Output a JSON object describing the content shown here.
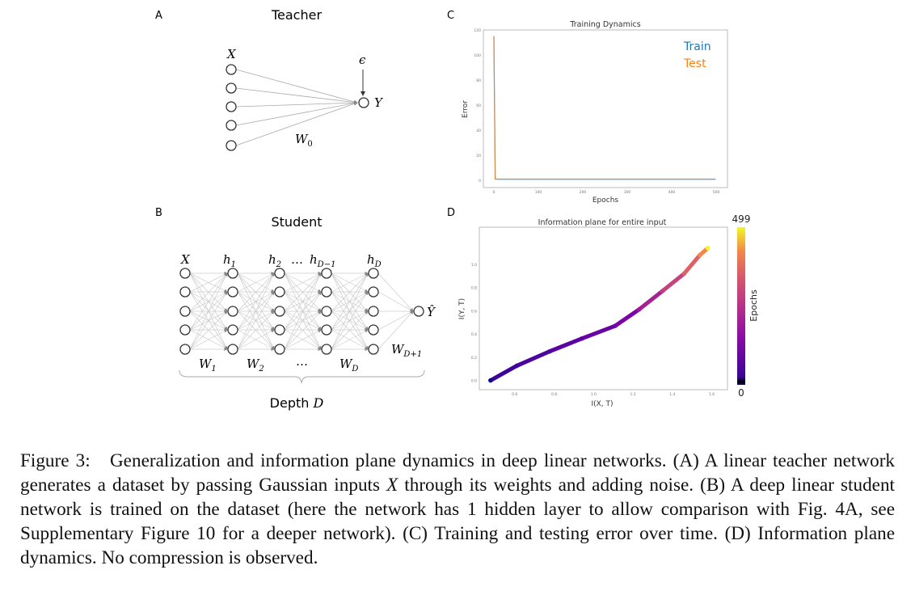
{
  "panels": {
    "a": {
      "letter": "A",
      "title": "Teacher",
      "input_label": "X",
      "noise_label": "ϵ",
      "output_label": "Y",
      "weight_label": "W",
      "weight_sub": "0"
    },
    "b": {
      "letter": "B",
      "title": "Student",
      "layer_labels": [
        "X",
        "h",
        "h",
        "…",
        "h",
        "h"
      ],
      "layer_subs": [
        "",
        "1",
        "2",
        "",
        "D−1",
        "D"
      ],
      "weight_labels": [
        "W",
        "W",
        "…",
        "W",
        "W"
      ],
      "weight_subs": [
        "1",
        "2",
        "",
        "D",
        "D+1"
      ],
      "output_label": "Ŷ",
      "depth_label": "Depth ",
      "depth_var": "D"
    },
    "c": {
      "letter": "C"
    },
    "d": {
      "letter": "D"
    }
  },
  "chart_data": [
    {
      "type": "line",
      "title": "Training Dynamics",
      "xlabel": "Epochs",
      "ylabel": "Error",
      "xlim": [
        0,
        500
      ],
      "ylim": [
        0,
        120
      ],
      "xticks": [
        "0",
        "100",
        "200",
        "300",
        "400",
        "500"
      ],
      "yticks": [
        "0",
        "20",
        "40",
        "60",
        "80",
        "100",
        "120"
      ],
      "legend_position": "top-right",
      "series": [
        {
          "name": "Train",
          "color": "#1f77b4",
          "x": [
            0,
            3,
            10,
            100,
            200,
            300,
            400,
            499
          ],
          "y": [
            115,
            1,
            0.8,
            0.8,
            0.8,
            0.8,
            0.8,
            0.8
          ]
        },
        {
          "name": "Test",
          "color": "#ff7f0e",
          "x": [
            0,
            3,
            10,
            100,
            200,
            300,
            400,
            499
          ],
          "y": [
            115,
            1.2,
            1,
            1,
            1,
            1,
            1,
            1
          ]
        }
      ]
    },
    {
      "type": "scatter",
      "title": "Information plane for entire input",
      "xlabel": "I(X, T)",
      "ylabel": "I(Y, T)",
      "xlim": [
        0.42,
        1.68
      ],
      "ylim": [
        -0.08,
        1.32
      ],
      "xticks": [
        "0.6",
        "0.8",
        "1.0",
        "1.2",
        "1.4",
        "1.6"
      ],
      "yticks": [
        "0.0",
        "0.2",
        "0.4",
        "0.6",
        "0.8",
        "1.0"
      ],
      "colorbar": {
        "label": "Epochs",
        "min": "0",
        "max": "499",
        "colormap": "plasma"
      },
      "x": [
        0.477,
        0.61,
        0.777,
        0.94,
        1.11,
        1.23,
        1.35,
        1.46,
        1.54,
        1.58
      ],
      "y": [
        0.0,
        0.126,
        0.25,
        0.36,
        0.47,
        0.61,
        0.77,
        0.92,
        1.08,
        1.14
      ],
      "epochs": [
        0,
        40,
        90,
        140,
        200,
        260,
        320,
        380,
        440,
        499
      ]
    }
  ],
  "caption": {
    "label": "Figure 3:",
    "text_1": "Generalization and information plane dynamics in deep linear networks. (A) A linear teacher network generates a dataset by passing Gaussian inputs ",
    "var": "X",
    "text_2": " through its weights and adding noise. (B) A deep linear student network is trained on the dataset (here the network has 1 hidden layer to allow comparison with Fig. 4A, see Supplementary Figure 10 for a deeper network). (C) Training and testing error over time. (D) Information plane dynamics. No compression is observed."
  }
}
